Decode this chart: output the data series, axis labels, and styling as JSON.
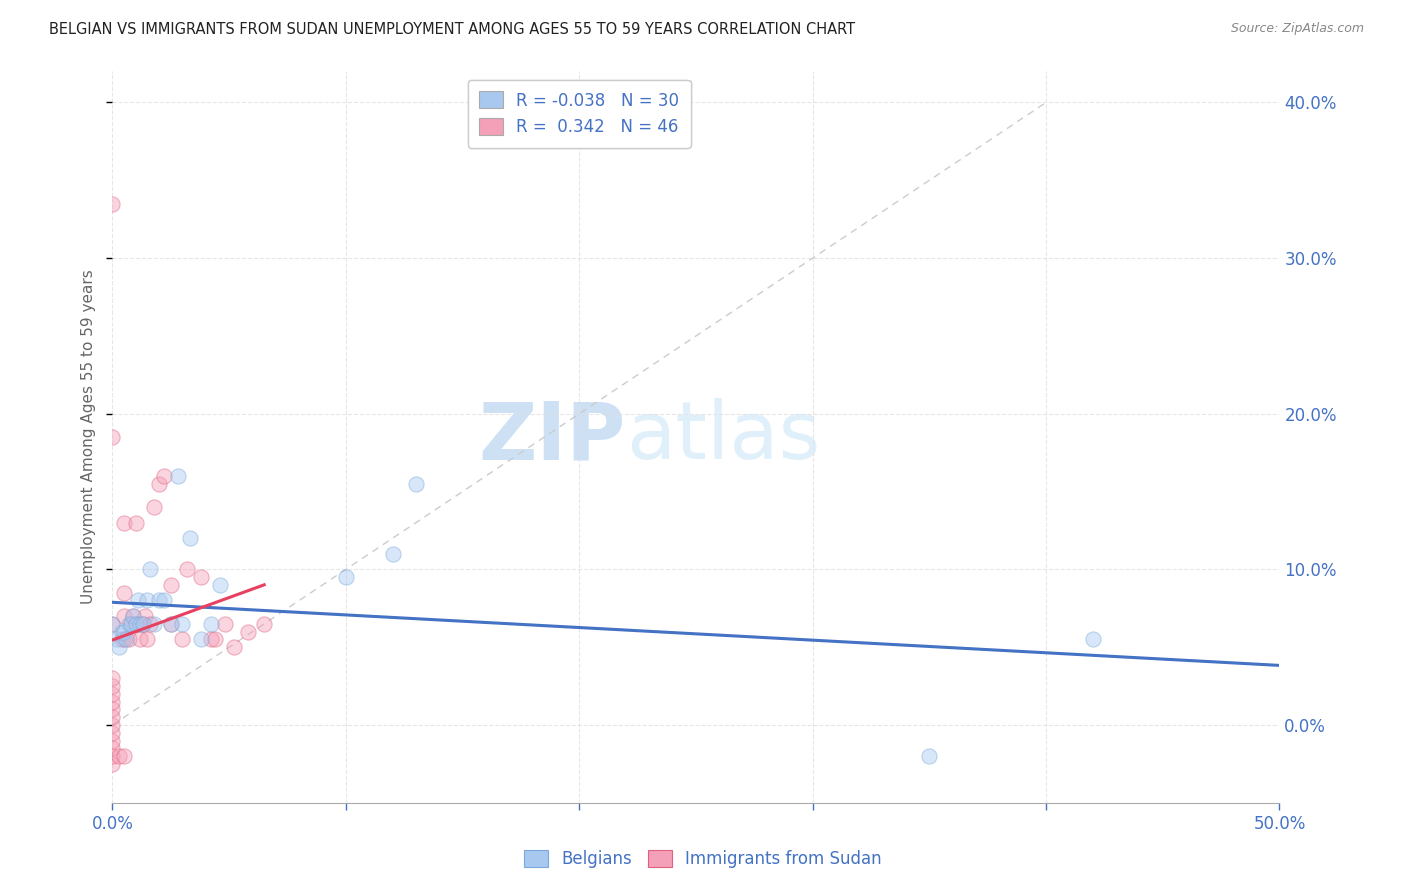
{
  "title": "BELGIAN VS IMMIGRANTS FROM SUDAN UNEMPLOYMENT AMONG AGES 55 TO 59 YEARS CORRELATION CHART",
  "source": "Source: ZipAtlas.com",
  "ylabel": "Unemployment Among Ages 55 to 59 years",
  "xlim": [
    0.0,
    0.5
  ],
  "ylim": [
    -0.05,
    0.42
  ],
  "right_yticks": [
    0.0,
    0.1,
    0.2,
    0.3,
    0.4
  ],
  "watermark_zip": "ZIP",
  "watermark_atlas": "atlas",
  "belgians_x": [
    0.0,
    0.002,
    0.003,
    0.004,
    0.005,
    0.006,
    0.007,
    0.008,
    0.009,
    0.01,
    0.011,
    0.012,
    0.013,
    0.015,
    0.016,
    0.018,
    0.02,
    0.022,
    0.025,
    0.028,
    0.03,
    0.033,
    0.038,
    0.042,
    0.046,
    0.1,
    0.12,
    0.13,
    0.35,
    0.42
  ],
  "belgians_y": [
    0.065,
    0.055,
    0.05,
    0.06,
    0.06,
    0.055,
    0.065,
    0.065,
    0.07,
    0.065,
    0.08,
    0.065,
    0.065,
    0.08,
    0.1,
    0.065,
    0.08,
    0.08,
    0.065,
    0.16,
    0.065,
    0.12,
    0.055,
    0.065,
    0.09,
    0.095,
    0.11,
    0.155,
    -0.02,
    0.055
  ],
  "sudan_x": [
    0.0,
    0.0,
    0.0,
    0.0,
    0.0,
    0.0,
    0.0,
    0.0,
    0.0,
    0.0,
    0.0,
    0.0,
    0.0,
    0.0,
    0.0,
    0.003,
    0.004,
    0.005,
    0.005,
    0.005,
    0.005,
    0.005,
    0.007,
    0.008,
    0.009,
    0.01,
    0.01,
    0.012,
    0.013,
    0.014,
    0.015,
    0.016,
    0.018,
    0.02,
    0.022,
    0.025,
    0.025,
    0.03,
    0.032,
    0.038,
    0.042,
    0.044,
    0.048,
    0.052,
    0.058,
    0.065
  ],
  "sudan_y": [
    -0.025,
    -0.02,
    -0.015,
    -0.01,
    -0.005,
    0.0,
    0.005,
    0.01,
    0.015,
    0.02,
    0.025,
    0.03,
    0.065,
    0.185,
    0.335,
    -0.02,
    0.055,
    -0.02,
    0.055,
    0.07,
    0.085,
    0.13,
    0.055,
    0.065,
    0.07,
    0.065,
    0.13,
    0.055,
    0.065,
    0.07,
    0.055,
    0.065,
    0.14,
    0.155,
    0.16,
    0.065,
    0.09,
    0.055,
    0.1,
    0.095,
    0.055,
    0.055,
    0.065,
    0.05,
    0.06,
    0.065
  ],
  "belgian_line_color": "#4472C4",
  "sudan_line_color": "#E84060",
  "diagonal_color": "#cccccc",
  "grid_color": "#e0e0e0",
  "axis_label_color": "#4472C4",
  "ylabel_color": "#666666",
  "title_color": "#222222",
  "dot_alpha": 0.45,
  "dot_size": 120,
  "belgian_dot_color": "#a8c8f0",
  "sudan_dot_color": "#f4a0b8",
  "belgian_edge_color": "#7aa8d8",
  "sudan_edge_color": "#e06080",
  "legend1_label": "R = -0.038   N = 30",
  "legend2_label": "R =  0.342   N = 46",
  "legend1_patch_color": "#a8c8f0",
  "legend2_patch_color": "#f4a0b8"
}
